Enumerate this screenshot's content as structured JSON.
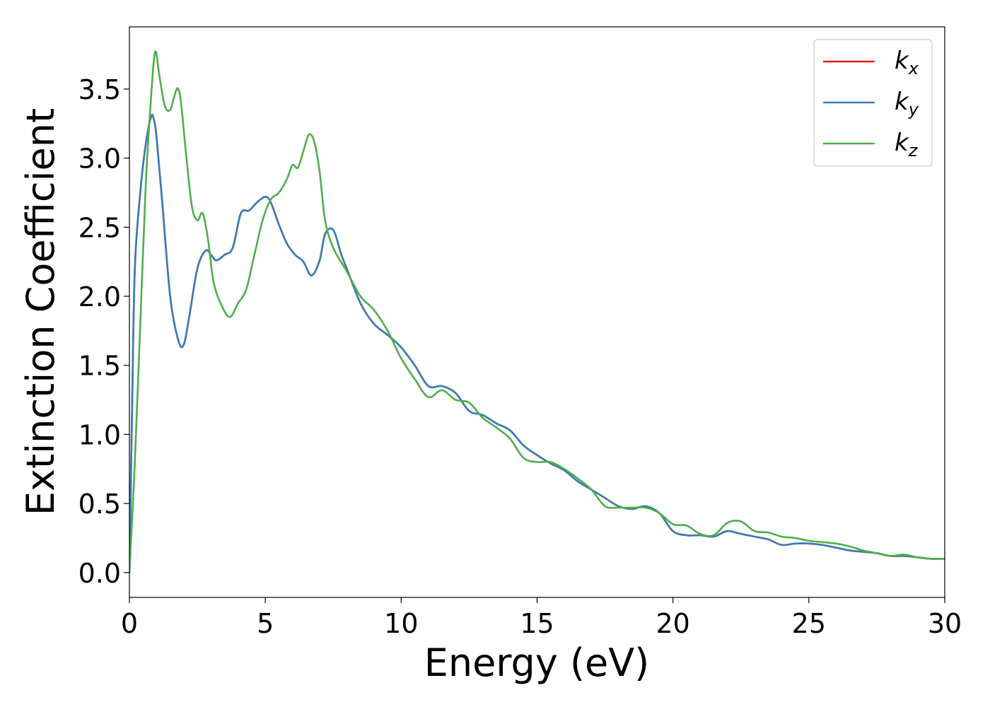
{
  "chart_data": {
    "type": "line",
    "xlabel": "Energy (eV)",
    "ylabel": "Extinction Coefficient",
    "xlim": [
      0,
      30
    ],
    "ylim": [
      -0.18,
      3.95
    ],
    "xticks": [
      0,
      5,
      10,
      15,
      20,
      25,
      30
    ],
    "xtick_labels": [
      "0",
      "5",
      "10",
      "15",
      "20",
      "25",
      "30"
    ],
    "yticks": [
      0.0,
      0.5,
      1.0,
      1.5,
      2.0,
      2.5,
      3.0,
      3.5
    ],
    "ytick_labels": [
      "0.0",
      "0.5",
      "1.0",
      "1.5",
      "2.0",
      "2.5",
      "3.0",
      "3.5"
    ],
    "grid": false,
    "legend_position": "top-right",
    "series": [
      {
        "name": "k_x",
        "label_main": "k",
        "label_sub": "x",
        "color": "#e41a1c",
        "x": [
          0,
          0.1,
          0.2,
          0.4,
          0.6,
          0.8,
          0.9,
          1.0,
          1.2,
          1.5,
          1.8,
          2.0,
          2.2,
          2.5,
          2.8,
          3.0,
          3.2,
          3.5,
          3.8,
          4.1,
          4.4,
          4.7,
          5.0,
          5.2,
          5.5,
          5.8,
          6.1,
          6.4,
          6.7,
          7.0,
          7.2,
          7.5,
          7.8,
          8.0,
          8.5,
          9.0,
          9.5,
          10.0,
          10.5,
          11.0,
          11.5,
          12.0,
          12.5,
          13.0,
          13.5,
          14.0,
          14.5,
          15.0,
          15.5,
          16.0,
          16.5,
          17.0,
          17.5,
          18.0,
          18.5,
          19.0,
          19.5,
          20.0,
          20.5,
          21.0,
          21.5,
          22.0,
          22.5,
          23.0,
          23.5,
          24.0,
          24.5,
          25.0,
          25.5,
          26.0,
          26.5,
          27.0,
          27.5,
          28.0,
          28.5,
          29.0,
          29.5,
          30.0
        ],
        "y": [
          0.0,
          1.2,
          2.2,
          2.75,
          3.1,
          3.3,
          3.28,
          3.15,
          2.7,
          2.0,
          1.68,
          1.65,
          1.85,
          2.2,
          2.33,
          2.3,
          2.26,
          2.3,
          2.35,
          2.6,
          2.62,
          2.68,
          2.72,
          2.68,
          2.52,
          2.38,
          2.3,
          2.25,
          2.15,
          2.26,
          2.45,
          2.48,
          2.3,
          2.2,
          1.95,
          1.8,
          1.72,
          1.63,
          1.5,
          1.35,
          1.35,
          1.3,
          1.17,
          1.14,
          1.08,
          1.03,
          0.92,
          0.85,
          0.79,
          0.74,
          0.66,
          0.6,
          0.54,
          0.48,
          0.46,
          0.48,
          0.43,
          0.3,
          0.27,
          0.27,
          0.26,
          0.3,
          0.28,
          0.26,
          0.24,
          0.2,
          0.21,
          0.21,
          0.2,
          0.18,
          0.16,
          0.15,
          0.14,
          0.12,
          0.12,
          0.11,
          0.1,
          0.1
        ]
      },
      {
        "name": "k_y",
        "label_main": "k",
        "label_sub": "y",
        "color": "#377eb8",
        "x": [
          0,
          0.1,
          0.2,
          0.4,
          0.6,
          0.8,
          0.9,
          1.0,
          1.2,
          1.5,
          1.8,
          2.0,
          2.2,
          2.5,
          2.8,
          3.0,
          3.2,
          3.5,
          3.8,
          4.1,
          4.4,
          4.7,
          5.0,
          5.2,
          5.5,
          5.8,
          6.1,
          6.4,
          6.7,
          7.0,
          7.2,
          7.5,
          7.8,
          8.0,
          8.5,
          9.0,
          9.5,
          10.0,
          10.5,
          11.0,
          11.5,
          12.0,
          12.5,
          13.0,
          13.5,
          14.0,
          14.5,
          15.0,
          15.5,
          16.0,
          16.5,
          17.0,
          17.5,
          18.0,
          18.5,
          19.0,
          19.5,
          20.0,
          20.5,
          21.0,
          21.5,
          22.0,
          22.5,
          23.0,
          23.5,
          24.0,
          24.5,
          25.0,
          25.5,
          26.0,
          26.5,
          27.0,
          27.5,
          28.0,
          28.5,
          29.0,
          29.5,
          30.0
        ],
        "y": [
          0.0,
          1.2,
          2.2,
          2.75,
          3.1,
          3.3,
          3.28,
          3.15,
          2.7,
          2.0,
          1.68,
          1.65,
          1.85,
          2.2,
          2.33,
          2.3,
          2.26,
          2.3,
          2.35,
          2.6,
          2.62,
          2.68,
          2.72,
          2.68,
          2.52,
          2.38,
          2.3,
          2.25,
          2.15,
          2.26,
          2.45,
          2.48,
          2.3,
          2.2,
          1.95,
          1.8,
          1.72,
          1.63,
          1.5,
          1.35,
          1.35,
          1.3,
          1.17,
          1.14,
          1.08,
          1.03,
          0.92,
          0.85,
          0.79,
          0.74,
          0.66,
          0.6,
          0.54,
          0.48,
          0.46,
          0.48,
          0.43,
          0.3,
          0.27,
          0.27,
          0.26,
          0.3,
          0.28,
          0.26,
          0.24,
          0.2,
          0.21,
          0.21,
          0.2,
          0.18,
          0.16,
          0.15,
          0.14,
          0.12,
          0.12,
          0.11,
          0.1,
          0.1
        ]
      },
      {
        "name": "k_z",
        "label_main": "k",
        "label_sub": "z",
        "color": "#4daf4a",
        "x": [
          0,
          0.2,
          0.4,
          0.6,
          0.8,
          0.95,
          1.1,
          1.3,
          1.5,
          1.7,
          1.8,
          1.9,
          2.1,
          2.3,
          2.5,
          2.7,
          2.9,
          3.1,
          3.4,
          3.7,
          4.0,
          4.3,
          4.6,
          4.9,
          5.2,
          5.5,
          5.8,
          6.0,
          6.2,
          6.4,
          6.6,
          6.8,
          7.0,
          7.2,
          7.5,
          8.0,
          8.5,
          9.0,
          9.5,
          10.0,
          10.5,
          11.0,
          11.5,
          12.0,
          12.5,
          13.0,
          13.5,
          14.0,
          14.5,
          15.0,
          15.5,
          16.0,
          16.5,
          17.0,
          17.5,
          18.0,
          18.5,
          19.0,
          19.5,
          20.0,
          20.5,
          21.0,
          21.5,
          22.0,
          22.5,
          23.0,
          23.5,
          24.0,
          24.5,
          25.0,
          25.5,
          26.0,
          26.5,
          27.0,
          27.5,
          28.0,
          28.5,
          29.0,
          29.5,
          30.0
        ],
        "y": [
          0.0,
          0.8,
          1.8,
          2.8,
          3.45,
          3.77,
          3.6,
          3.38,
          3.35,
          3.48,
          3.5,
          3.4,
          3.0,
          2.65,
          2.55,
          2.6,
          2.4,
          2.1,
          1.93,
          1.85,
          1.95,
          2.05,
          2.3,
          2.55,
          2.7,
          2.75,
          2.85,
          2.95,
          2.93,
          3.05,
          3.17,
          3.12,
          2.9,
          2.55,
          2.35,
          2.18,
          2.0,
          1.9,
          1.75,
          1.55,
          1.4,
          1.27,
          1.32,
          1.25,
          1.23,
          1.12,
          1.05,
          0.97,
          0.83,
          0.8,
          0.8,
          0.75,
          0.68,
          0.6,
          0.48,
          0.47,
          0.47,
          0.47,
          0.43,
          0.35,
          0.34,
          0.28,
          0.27,
          0.36,
          0.37,
          0.3,
          0.29,
          0.26,
          0.25,
          0.23,
          0.22,
          0.21,
          0.19,
          0.16,
          0.14,
          0.12,
          0.13,
          0.11,
          0.1,
          0.1
        ]
      }
    ]
  }
}
